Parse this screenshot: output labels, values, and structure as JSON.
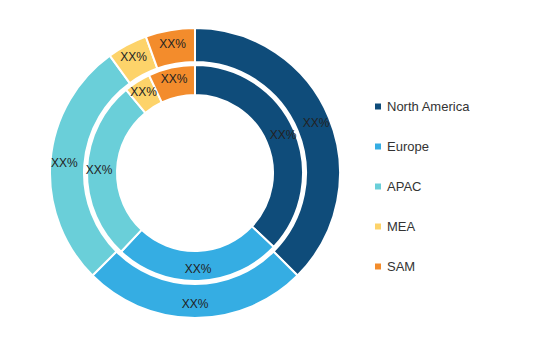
{
  "chart_data": {
    "type": "pie",
    "categories": [
      "North America",
      "Europe",
      "APAC",
      "MEA",
      "SAM"
    ],
    "colors": [
      "#0f4c7a",
      "#35ade3",
      "#6acfd9",
      "#fdd36a",
      "#f38c2c"
    ],
    "legend": "right",
    "data_labels": true,
    "series": [
      {
        "values": [
          37,
          25,
          27,
          4,
          7
        ],
        "value_labels": [
          "XX%",
          "XX%",
          "XX%",
          "XX%",
          "XX%"
        ]
      },
      {
        "values": [
          37.5,
          25,
          27.5,
          4.5,
          5.5
        ],
        "value_labels": [
          "XX%",
          "XX%",
          "XX%",
          "XX%",
          "XX%"
        ]
      }
    ]
  }
}
